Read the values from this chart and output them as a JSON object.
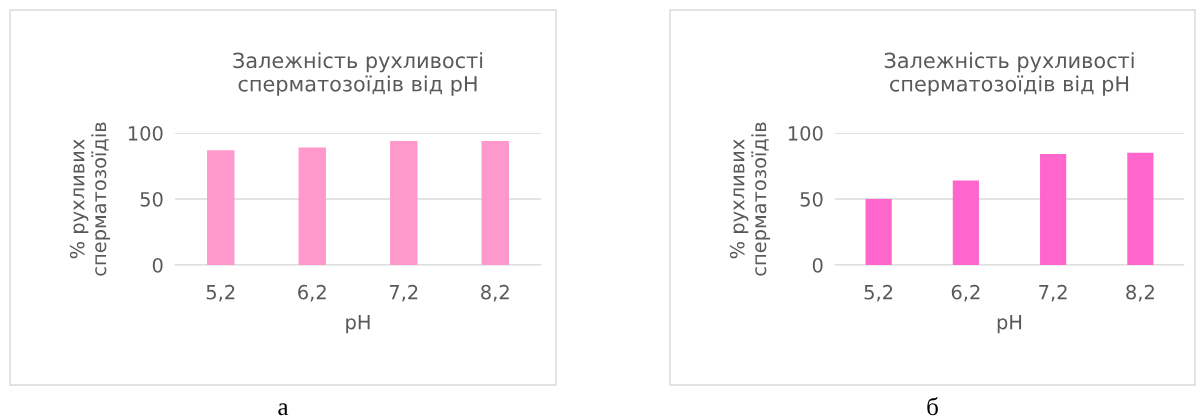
{
  "chart_data": [
    {
      "type": "bar",
      "title": "Залежність рухливості\nсперматозоїдів від pH",
      "xlabel": "pH",
      "ylabel": "% рухливих\nсперматозоїдів",
      "categories": [
        "5,2",
        "6,2",
        "7,2",
        "8,2"
      ],
      "values": [
        87,
        89,
        94,
        94
      ],
      "color": "#ff99cc",
      "ylim": [
        0,
        100
      ],
      "yticks": [
        0,
        50,
        100
      ],
      "grid": "y",
      "legend": false,
      "annotations": [
        "а"
      ]
    },
    {
      "type": "bar",
      "title": "Залежність рухливості\nсперматозоїдів від pH",
      "xlabel": "pH",
      "ylabel": "% рухливих\nсперматозоїдів",
      "categories": [
        "5,2",
        "6,2",
        "7,2",
        "8,2"
      ],
      "values": [
        50,
        64,
        84,
        85
      ],
      "color": "#ff66cc",
      "ylim": [
        0,
        100
      ],
      "yticks": [
        0,
        50,
        100
      ],
      "grid": "y",
      "legend": false,
      "annotations": [
        "б"
      ]
    }
  ]
}
